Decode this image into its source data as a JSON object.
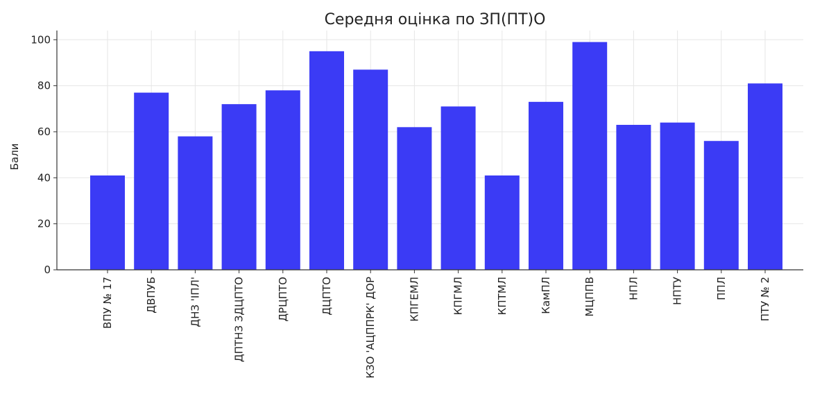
{
  "chart_data": {
    "type": "bar",
    "title": "Середня оцінка по ЗП(ПТ)О",
    "xlabel": "",
    "ylabel": "Бали",
    "categories": [
      "ВПУ № 17",
      "ДВПУБ",
      "ДНЗ 'ІПЛ'",
      "ДПТНЗ ЗДЦПТО",
      "ДРЦПТО",
      "ДЦПТО",
      "КЗО 'АЦППРК' ДОР",
      "КПГЕМЛ",
      "КПГМЛ",
      "КПТМЛ",
      "КамПЛ",
      "МЦППВ",
      "НПЛ",
      "НПТУ",
      "ППЛ",
      "ПТУ № 2"
    ],
    "values": [
      41,
      77,
      58,
      72,
      78,
      95,
      87,
      62,
      71,
      41,
      73,
      99,
      63,
      64,
      56,
      81
    ],
    "ylim": [
      0,
      104
    ],
    "yticks": [
      0,
      20,
      40,
      60,
      80,
      100
    ],
    "grid": true,
    "bar_color": "#3b3bf5"
  }
}
